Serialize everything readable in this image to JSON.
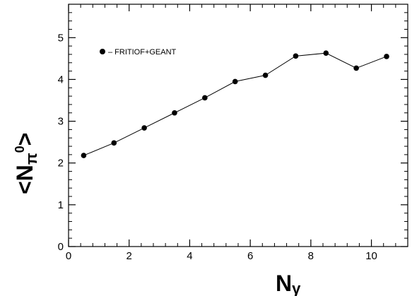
{
  "chart_data": {
    "type": "line",
    "title": "",
    "xlabel_main": "N",
    "xlabel_sub": "γ",
    "ylabel_left": "<",
    "ylabel_main": "N",
    "ylabel_sub": "π",
    "ylabel_sup": "0",
    "ylabel_right": ">",
    "xlim": [
      0,
      11.2
    ],
    "ylim": [
      0,
      5.8
    ],
    "x_ticks": [
      0,
      2,
      4,
      6,
      8,
      10
    ],
    "y_ticks": [
      0,
      1,
      2,
      3,
      4,
      5
    ],
    "grid": false,
    "legend_position": "top-left",
    "series": [
      {
        "name": "FRITIOF+GEANT",
        "legend_label": "– FRITIOF+GEANT",
        "x": [
          0.5,
          1.5,
          2.5,
          3.5,
          4.5,
          5.5,
          6.5,
          7.5,
          8.5,
          9.5,
          10.5
        ],
        "y": [
          2.18,
          2.48,
          2.84,
          3.2,
          3.56,
          3.95,
          4.1,
          4.56,
          4.63,
          4.27,
          4.55
        ]
      }
    ]
  }
}
